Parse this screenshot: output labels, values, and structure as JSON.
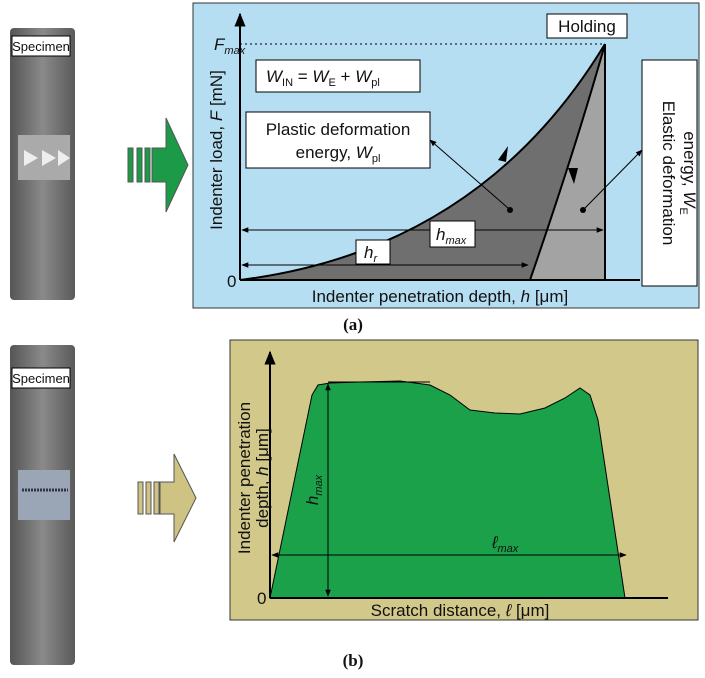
{
  "panel_a": {
    "specimen_label": "Specimen",
    "y_axis_label": [
      "Indenter load, ",
      "F",
      " [mN]"
    ],
    "x_axis_label": [
      "Indenter penetration depth, ",
      "h",
      " [μm]"
    ],
    "origin": "0",
    "f_max": [
      "F",
      "max"
    ],
    "holding": "Holding",
    "equation": [
      "W",
      "IN",
      " = ",
      "W",
      "E",
      " + ",
      "W",
      "pl"
    ],
    "plastic_label": [
      "Plastic deformation",
      "energy, ",
      "W",
      "pl"
    ],
    "elastic_label": [
      "Elastic deformation",
      "energy, ",
      "W",
      "E"
    ],
    "h_max": [
      "h",
      "max"
    ],
    "h_r": [
      "h",
      "r"
    ],
    "caption": "(a)"
  },
  "panel_b": {
    "specimen_label": "Specimen",
    "y_axis_label": [
      "Indenter penetration",
      "depth, ",
      "h",
      " [μm]"
    ],
    "x_axis_label": [
      "Scratch distance, ",
      "ℓ",
      " [μm]"
    ],
    "origin": "0",
    "h_max": [
      "h",
      "max"
    ],
    "l_max": [
      "ℓ",
      "max"
    ],
    "caption": "(b)"
  }
}
